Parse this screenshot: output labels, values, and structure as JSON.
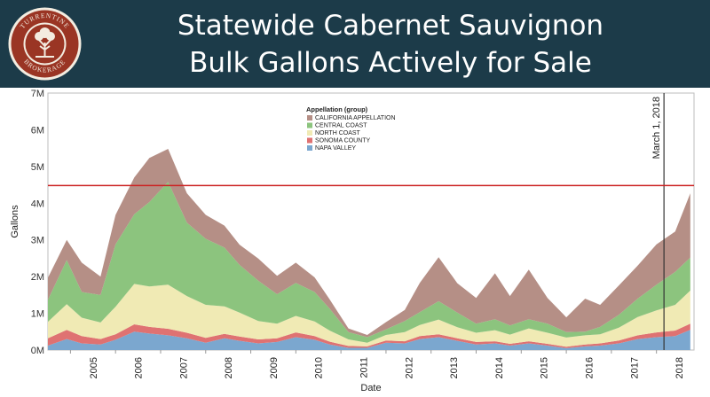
{
  "header": {
    "title_line1": "Statewide Cabernet Sauvignon",
    "title_line2": "Bulk Gallons Actively for Sale",
    "logo_text_top": "TURRENTINE",
    "logo_text_bottom": "BROKERAGE",
    "bg_color": "#1c3b49"
  },
  "chart_data": {
    "type": "area",
    "stacked": true,
    "xlabel": "Date",
    "ylabel": "Gallons",
    "ylim": [
      0,
      7000000
    ],
    "y_ticks": [
      "0M",
      "1M",
      "2M",
      "3M",
      "4M",
      "5M",
      "6M",
      "7M"
    ],
    "x_ticks": [
      "2005",
      "2006",
      "2007",
      "2008",
      "2009",
      "2010",
      "2011",
      "2012",
      "2013",
      "2014",
      "2015",
      "2016",
      "2017",
      "2018"
    ],
    "x_range": [
      "2004-07-01",
      "2018-11-01"
    ],
    "legend": {
      "title": "Appellation (group)",
      "position": "top-center",
      "items": [
        {
          "label": "CALIFORNIA APPELLATION",
          "color": "#b58f86"
        },
        {
          "label": "CENTRAL COAST",
          "color": "#8cc47e"
        },
        {
          "label": "NORTH COAST",
          "color": "#f0eab4"
        },
        {
          "label": "SONOMA COUNTY",
          "color": "#df7272"
        },
        {
          "label": "NAPA VALLEY",
          "color": "#7ba7cf"
        }
      ]
    },
    "reference_line": {
      "label": "March 1, 2018",
      "date": "2018-03-01",
      "color": "#333333"
    },
    "threshold_line": {
      "value": 4480000,
      "color": "#cc2222"
    },
    "x": [
      "2004-07",
      "2004-12",
      "2005-04",
      "2005-09",
      "2006-01",
      "2006-06",
      "2006-10",
      "2007-03",
      "2007-08",
      "2008-01",
      "2008-06",
      "2008-10",
      "2009-03",
      "2009-08",
      "2010-01",
      "2010-06",
      "2010-10",
      "2011-03",
      "2011-08",
      "2012-01",
      "2012-06",
      "2012-10",
      "2013-03",
      "2013-08",
      "2014-01",
      "2014-06",
      "2014-10",
      "2015-03",
      "2015-08",
      "2016-01",
      "2016-06",
      "2016-10",
      "2017-03",
      "2017-08",
      "2018-01",
      "2018-06",
      "2018-10"
    ],
    "series": [
      {
        "name": "NAPA VALLEY",
        "values": [
          120000,
          300000,
          180000,
          150000,
          280000,
          500000,
          450000,
          400000,
          320000,
          200000,
          320000,
          250000,
          180000,
          220000,
          350000,
          280000,
          150000,
          60000,
          60000,
          200000,
          180000,
          300000,
          350000,
          250000,
          150000,
          180000,
          120000,
          180000,
          120000,
          50000,
          100000,
          120000,
          180000,
          300000,
          350000,
          380000,
          550000
        ]
      },
      {
        "name": "SONOMA COUNTY",
        "values": [
          200000,
          250000,
          200000,
          150000,
          150000,
          200000,
          180000,
          180000,
          150000,
          130000,
          120000,
          120000,
          110000,
          100000,
          130000,
          100000,
          80000,
          50000,
          40000,
          60000,
          60000,
          80000,
          80000,
          70000,
          70000,
          60000,
          50000,
          60000,
          50000,
          40000,
          50000,
          60000,
          80000,
          100000,
          130000,
          150000,
          170000
        ]
      },
      {
        "name": "NORTH COAST",
        "values": [
          450000,
          700000,
          500000,
          450000,
          750000,
          1100000,
          1100000,
          1200000,
          1000000,
          900000,
          750000,
          650000,
          500000,
          400000,
          450000,
          400000,
          300000,
          180000,
          100000,
          150000,
          250000,
          300000,
          400000,
          300000,
          250000,
          300000,
          250000,
          350000,
          300000,
          250000,
          250000,
          250000,
          350000,
          500000,
          600000,
          700000,
          900000
        ]
      },
      {
        "name": "CENTRAL COAST",
        "values": [
          600000,
          1200000,
          700000,
          750000,
          1700000,
          1900000,
          2300000,
          2800000,
          2000000,
          1800000,
          1600000,
          1300000,
          1100000,
          800000,
          900000,
          800000,
          600000,
          200000,
          150000,
          150000,
          300000,
          350000,
          500000,
          400000,
          250000,
          300000,
          250000,
          250000,
          250000,
          150000,
          100000,
          200000,
          350000,
          500000,
          700000,
          900000,
          900000
        ]
      },
      {
        "name": "CALIFORNIA APPELLATION",
        "values": [
          600000,
          550000,
          800000,
          500000,
          800000,
          1000000,
          1200000,
          900000,
          800000,
          650000,
          600000,
          550000,
          600000,
          500000,
          550000,
          400000,
          250000,
          100000,
          60000,
          200000,
          300000,
          800000,
          1200000,
          800000,
          700000,
          1250000,
          800000,
          1350000,
          700000,
          400000,
          900000,
          600000,
          800000,
          900000,
          1100000,
          1100000,
          1750000
        ]
      }
    ]
  }
}
